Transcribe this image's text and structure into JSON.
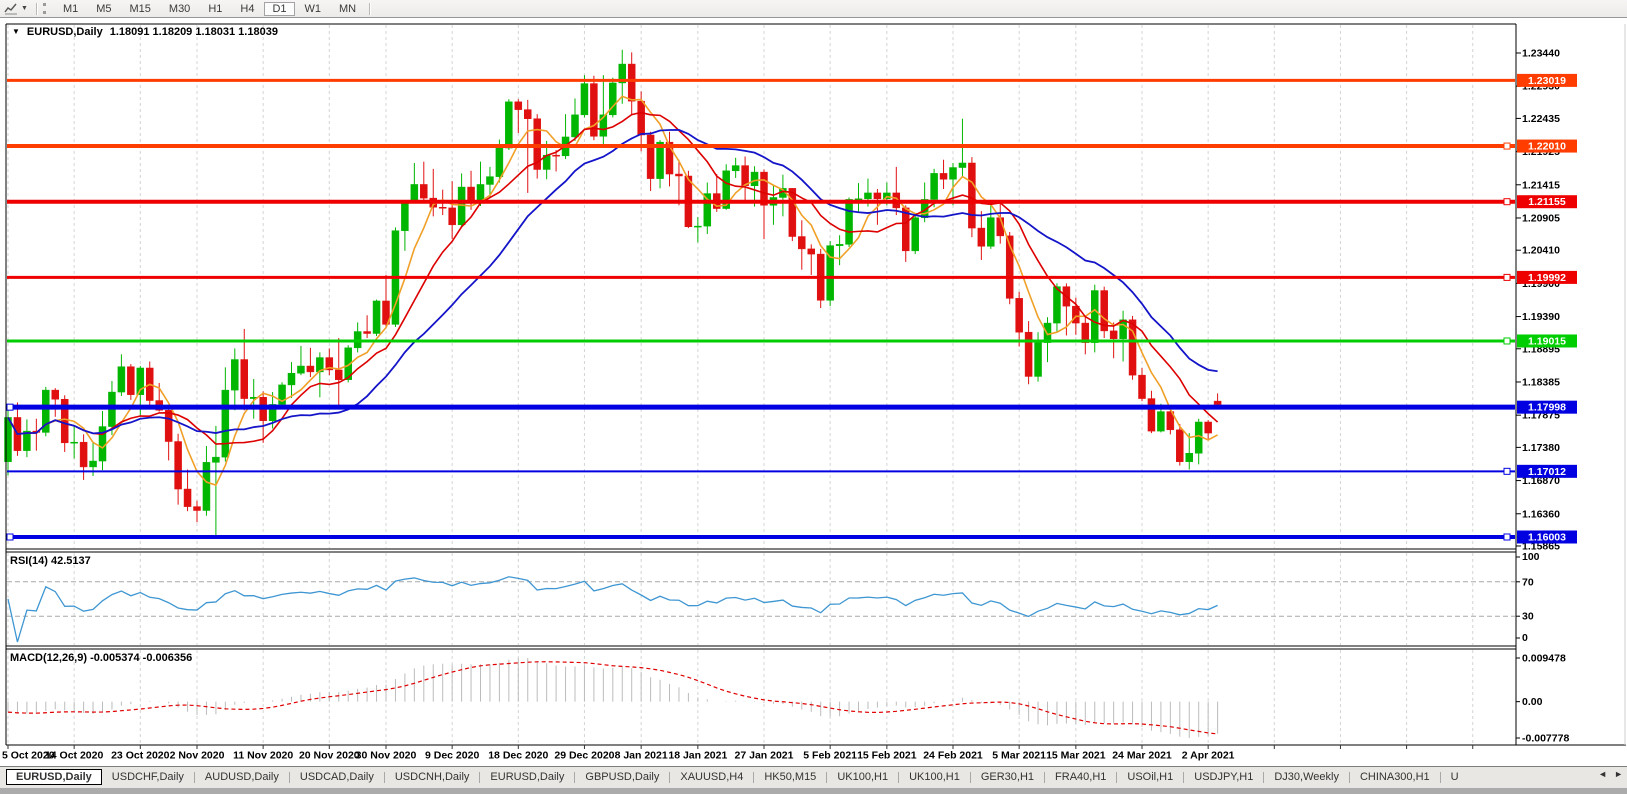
{
  "toolbar": {
    "timeframes": [
      "M1",
      "M5",
      "M15",
      "M30",
      "H1",
      "H4",
      "D1",
      "W1",
      "MN"
    ],
    "active_timeframe": "D1",
    "menu_caret": "▼"
  },
  "chart": {
    "title": "EURUSD,Daily",
    "ohlc_text": "1.18091 1.18209 1.18031 1.18039",
    "marker": "▼"
  },
  "tabs": {
    "active": "EURUSD,Daily",
    "items": [
      "USDCHF,Daily",
      "AUDUSD,Daily",
      "USDCAD,Daily",
      "USDCNH,Daily",
      "EURUSD,Daily",
      "GBPUSD,Daily",
      "XAUUSD,H4",
      "HK50,M15",
      "UK100,H1",
      "UK100,H1",
      "GER30,H1",
      "FRA40,H1",
      "USOil,H1",
      "USDJPY,H1",
      "DJ30,Weekly",
      "CHINA300,H1",
      "U"
    ],
    "scroll_left": "◄",
    "scroll_right": "►"
  },
  "chart_data": {
    "type": "candlestick",
    "symbol": "EURUSD",
    "timeframe": "Daily",
    "last_ohlc": {
      "open": 1.18091,
      "high": 1.18209,
      "low": 1.18031,
      "close": 1.18039
    },
    "colors": {
      "bull": "#00b600",
      "bear": "#e01010",
      "grid": "#d4d4d4"
    },
    "y_ticks": [
      "1.23440",
      "1.22930",
      "1.22435",
      "1.21925",
      "1.21415",
      "1.20905",
      "1.20410",
      "1.19900",
      "1.19390",
      "1.18895",
      "1.18385",
      "1.17875",
      "1.17380",
      "1.16870",
      "1.16360",
      "1.15865"
    ],
    "x_labels": [
      {
        "label": "5 Oct 2020",
        "index": 0
      },
      {
        "label": "14 Oct 2020",
        "index": 7
      },
      {
        "label": "23 Oct 2020",
        "index": 14
      },
      {
        "label": "2 Nov 2020",
        "index": 20
      },
      {
        "label": "11 Nov 2020",
        "index": 27
      },
      {
        "label": "20 Nov 2020",
        "index": 34
      },
      {
        "label": "30 Nov 2020",
        "index": 40
      },
      {
        "label": "9 Dec 2020",
        "index": 47
      },
      {
        "label": "18 Dec 2020",
        "index": 54
      },
      {
        "label": "29 Dec 2020",
        "index": 61
      },
      {
        "label": "8 Jan 2021",
        "index": 67
      },
      {
        "label": "18 Jan 2021",
        "index": 73
      },
      {
        "label": "27 Jan 2021",
        "index": 80
      },
      {
        "label": "5 Feb 2021",
        "index": 87
      },
      {
        "label": "15 Feb 2021",
        "index": 93
      },
      {
        "label": "24 Feb 2021",
        "index": 100
      },
      {
        "label": "5 Mar 2021",
        "index": 107
      },
      {
        "label": "15 Mar 2021",
        "index": 113
      },
      {
        "label": "24 Mar 2021",
        "index": 120
      },
      {
        "label": "2 Apr 2021",
        "index": 127
      }
    ],
    "future_ticks": [
      134,
      141,
      148,
      155
    ],
    "levels": [
      {
        "price": 1.23019,
        "label": "1.23019",
        "color": "#ff3d00",
        "width": 3,
        "left_handle": false,
        "right_handle": false
      },
      {
        "price": 1.2201,
        "label": "1.22010",
        "color": "#ff3d00",
        "width": 4,
        "left_handle": false,
        "right_handle": true
      },
      {
        "price": 1.21155,
        "label": "1.21155",
        "color": "#ee0000",
        "width": 4,
        "left_handle": false,
        "right_handle": true
      },
      {
        "price": 1.19992,
        "label": "1.19992",
        "color": "#ee0000",
        "width": 3,
        "left_handle": false,
        "right_handle": true
      },
      {
        "price": 1.19015,
        "label": "1.19015",
        "color": "#00ce00",
        "width": 3,
        "left_handle": false,
        "right_handle": true
      },
      {
        "price": 1.17998,
        "label": "1.17998",
        "color": "#0000e0",
        "width": 5,
        "left_handle": true,
        "right_handle": false
      },
      {
        "price": 1.17012,
        "label": "1.17012",
        "color": "#0000e0",
        "width": 2,
        "left_handle": false,
        "right_handle": true
      },
      {
        "price": 1.16003,
        "label": "1.16003",
        "color": "#0000e0",
        "width": 4,
        "left_handle": true,
        "right_handle": true
      }
    ],
    "overlays": [
      {
        "name": "ma-fast",
        "type": "sma",
        "period": 5,
        "color": "#f0a028",
        "width": 1.6
      },
      {
        "name": "ma-medium",
        "type": "sma",
        "period": 10,
        "color": "#dd0000",
        "width": 1.6
      },
      {
        "name": "ma-slow",
        "type": "sma",
        "period": 20,
        "color": "#1414c8",
        "width": 1.8
      }
    ],
    "indicators": {
      "rsi": {
        "label": "RSI(14) 42.5137",
        "period": 14,
        "value": 42.5137,
        "axis": [
          "100",
          "70",
          "30",
          "0"
        ],
        "dashed_levels": [
          70,
          30
        ],
        "color": "#3e96d2"
      },
      "macd": {
        "label": "MACD(12,26,9) -0.005374 -0.006356",
        "fast": 12,
        "slow": 26,
        "signal": 9,
        "value": -0.005374,
        "signal_value": -0.006356,
        "axis_max": "0.009478",
        "axis_zero": "0.00",
        "axis_min": "-0.007778",
        "bar_color": "#bcbcbc",
        "signal_color": "#e00000"
      }
    },
    "candles": [
      [
        1.1716,
        1.1797,
        1.1695,
        1.1784
      ],
      [
        1.1784,
        1.1807,
        1.1725,
        1.1733
      ],
      [
        1.1733,
        1.1781,
        1.1723,
        1.1763
      ],
      [
        1.1763,
        1.1782,
        1.1733,
        1.1761
      ],
      [
        1.1761,
        1.1831,
        1.1755,
        1.1826
      ],
      [
        1.1826,
        1.1829,
        1.1785,
        1.1812
      ],
      [
        1.1812,
        1.1818,
        1.1731,
        1.1745
      ],
      [
        1.1745,
        1.1772,
        1.1721,
        1.1746
      ],
      [
        1.1746,
        1.1758,
        1.1688,
        1.1708
      ],
      [
        1.1708,
        1.1747,
        1.1694,
        1.1717
      ],
      [
        1.1717,
        1.1794,
        1.1703,
        1.177
      ],
      [
        1.177,
        1.184,
        1.1757,
        1.1823
      ],
      [
        1.1823,
        1.1881,
        1.1817,
        1.1862
      ],
      [
        1.1862,
        1.1866,
        1.1811,
        1.1819
      ],
      [
        1.1819,
        1.1863,
        1.1786,
        1.186
      ],
      [
        1.186,
        1.187,
        1.1803,
        1.181
      ],
      [
        1.181,
        1.1837,
        1.1793,
        1.1795
      ],
      [
        1.1795,
        1.18,
        1.1718,
        1.1747
      ],
      [
        1.1747,
        1.1759,
        1.165,
        1.1674
      ],
      [
        1.1674,
        1.1704,
        1.164,
        1.1647
      ],
      [
        1.1647,
        1.1656,
        1.1623,
        1.1641
      ],
      [
        1.1641,
        1.174,
        1.1633,
        1.1715
      ],
      [
        1.1715,
        1.1771,
        1.1603,
        1.1723
      ],
      [
        1.1723,
        1.1861,
        1.1716,
        1.1826
      ],
      [
        1.1826,
        1.189,
        1.1795,
        1.1873
      ],
      [
        1.1873,
        1.192,
        1.1795,
        1.1813
      ],
      [
        1.1813,
        1.1843,
        1.1782,
        1.1815
      ],
      [
        1.1815,
        1.1824,
        1.1745,
        1.1779
      ],
      [
        1.1779,
        1.1823,
        1.1767,
        1.1804
      ],
      [
        1.1804,
        1.1838,
        1.1798,
        1.1834
      ],
      [
        1.1834,
        1.1869,
        1.1814,
        1.1852
      ],
      [
        1.1852,
        1.1894,
        1.1849,
        1.1863
      ],
      [
        1.1863,
        1.1891,
        1.1846,
        1.1854
      ],
      [
        1.1854,
        1.1884,
        1.1815,
        1.1876
      ],
      [
        1.1876,
        1.189,
        1.1849,
        1.1857
      ],
      [
        1.1857,
        1.1906,
        1.18,
        1.1842
      ],
      [
        1.1842,
        1.1895,
        1.1838,
        1.1891
      ],
      [
        1.1891,
        1.193,
        1.1884,
        1.1916
      ],
      [
        1.1916,
        1.1941,
        1.1906,
        1.1913
      ],
      [
        1.1913,
        1.1965,
        1.1909,
        1.1963
      ],
      [
        1.1963,
        1.2003,
        1.1923,
        1.1927
      ],
      [
        1.1927,
        1.2076,
        1.1923,
        1.2071
      ],
      [
        1.2071,
        1.2118,
        1.204,
        1.2115
      ],
      [
        1.2115,
        1.2175,
        1.2114,
        1.2142
      ],
      [
        1.2142,
        1.2177,
        1.2115,
        1.2121
      ],
      [
        1.2121,
        1.2166,
        1.2093,
        1.2107
      ],
      [
        1.2107,
        1.2134,
        1.2095,
        1.2106
      ],
      [
        1.2106,
        1.2147,
        1.2058,
        1.208
      ],
      [
        1.208,
        1.2159,
        1.2076,
        1.2138
      ],
      [
        1.2138,
        1.2163,
        1.2103,
        1.2113
      ],
      [
        1.2113,
        1.2177,
        1.2109,
        1.2142
      ],
      [
        1.2142,
        1.2169,
        1.2123,
        1.2154
      ],
      [
        1.2154,
        1.2211,
        1.2145,
        1.2198
      ],
      [
        1.2198,
        1.2273,
        1.2195,
        1.2269
      ],
      [
        1.2269,
        1.2273,
        1.2221,
        1.2257
      ],
      [
        1.2257,
        1.2272,
        1.2129,
        1.2243
      ],
      [
        1.2243,
        1.225,
        1.2151,
        1.2165
      ],
      [
        1.2165,
        1.2209,
        1.215,
        1.2187
      ],
      [
        1.2187,
        1.2195,
        1.2162,
        1.2186
      ],
      [
        1.2186,
        1.225,
        1.2181,
        1.2215
      ],
      [
        1.2215,
        1.2274,
        1.2209,
        1.2249
      ],
      [
        1.2249,
        1.231,
        1.2245,
        1.2297
      ],
      [
        1.2297,
        1.2309,
        1.221,
        1.2216
      ],
      [
        1.2216,
        1.231,
        1.22,
        1.2249
      ],
      [
        1.2249,
        1.2306,
        1.2245,
        1.2298
      ],
      [
        1.2298,
        1.2349,
        1.2266,
        1.2327
      ],
      [
        1.2327,
        1.2345,
        1.2248,
        1.227
      ],
      [
        1.227,
        1.2285,
        1.2193,
        1.2218
      ],
      [
        1.2218,
        1.2223,
        1.2132,
        1.2151
      ],
      [
        1.2151,
        1.221,
        1.2136,
        1.2207
      ],
      [
        1.2207,
        1.2223,
        1.2139,
        1.2158
      ],
      [
        1.2158,
        1.218,
        1.211,
        1.2155
      ],
      [
        1.2155,
        1.2163,
        1.2075,
        1.2077
      ],
      [
        1.2077,
        1.2092,
        1.2053,
        1.2078
      ],
      [
        1.2078,
        1.2145,
        1.2066,
        1.2128
      ],
      [
        1.2128,
        1.2158,
        1.21,
        1.2105
      ],
      [
        1.2105,
        1.2173,
        1.2103,
        1.2163
      ],
      [
        1.2163,
        1.2183,
        1.2152,
        1.2171
      ],
      [
        1.2171,
        1.2185,
        1.2116,
        1.214
      ],
      [
        1.214,
        1.217,
        1.2108,
        1.2161
      ],
      [
        1.2161,
        1.2165,
        1.2058,
        1.211
      ],
      [
        1.211,
        1.2142,
        1.208,
        1.2122
      ],
      [
        1.2122,
        1.2157,
        1.2093,
        1.2136
      ],
      [
        1.2136,
        1.2136,
        1.2055,
        1.2062
      ],
      [
        1.2062,
        1.2087,
        1.2011,
        1.2043
      ],
      [
        1.2043,
        1.205,
        1.2003,
        1.2035
      ],
      [
        1.2035,
        1.2043,
        1.1952,
        1.1964
      ],
      [
        1.1964,
        1.2055,
        1.1955,
        1.2048
      ],
      [
        1.2048,
        1.2064,
        1.2018,
        1.205
      ],
      [
        1.205,
        1.2122,
        1.2046,
        1.2119
      ],
      [
        1.2119,
        1.2144,
        1.21,
        1.212
      ],
      [
        1.212,
        1.2151,
        1.2108,
        1.2129
      ],
      [
        1.2129,
        1.2135,
        1.208,
        1.212
      ],
      [
        1.212,
        1.2145,
        1.211,
        1.2129
      ],
      [
        1.2129,
        1.2169,
        1.2095,
        1.2106
      ],
      [
        1.2106,
        1.211,
        1.2023,
        1.204
      ],
      [
        1.204,
        1.2097,
        1.2035,
        1.2091
      ],
      [
        1.2091,
        1.2145,
        1.2084,
        1.2119
      ],
      [
        1.2119,
        1.2166,
        1.2107,
        1.2159
      ],
      [
        1.2159,
        1.218,
        1.2135,
        1.215
      ],
      [
        1.215,
        1.2175,
        1.211,
        1.2168
      ],
      [
        1.2168,
        1.2243,
        1.2155,
        1.2175
      ],
      [
        1.2175,
        1.2184,
        1.2061,
        1.2075
      ],
      [
        1.2075,
        1.2101,
        1.2026,
        1.2047
      ],
      [
        1.2047,
        1.2113,
        1.2043,
        1.2091
      ],
      [
        1.2091,
        1.2113,
        1.2051,
        1.2063
      ],
      [
        1.2063,
        1.2069,
        1.1958,
        1.1967
      ],
      [
        1.1967,
        1.1977,
        1.1893,
        1.1915
      ],
      [
        1.1915,
        1.1932,
        1.1835,
        1.1847
      ],
      [
        1.1847,
        1.1915,
        1.1839,
        1.1899
      ],
      [
        1.1899,
        1.1938,
        1.1869,
        1.1929
      ],
      [
        1.1929,
        1.199,
        1.1915,
        1.1985
      ],
      [
        1.1985,
        1.199,
        1.191,
        1.1955
      ],
      [
        1.1955,
        1.1968,
        1.1911,
        1.1929
      ],
      [
        1.1929,
        1.194,
        1.1881,
        1.1899
      ],
      [
        1.1899,
        1.1988,
        1.1884,
        1.1979
      ],
      [
        1.1979,
        1.1985,
        1.1906,
        1.1917
      ],
      [
        1.1917,
        1.193,
        1.1875,
        1.1905
      ],
      [
        1.1905,
        1.1948,
        1.187,
        1.1934
      ],
      [
        1.1934,
        1.194,
        1.1842,
        1.1849
      ],
      [
        1.1849,
        1.186,
        1.1809,
        1.1813
      ],
      [
        1.1813,
        1.1825,
        1.176,
        1.1763
      ],
      [
        1.1763,
        1.1805,
        1.1761,
        1.1793
      ],
      [
        1.1793,
        1.1796,
        1.1758,
        1.1765
      ],
      [
        1.1765,
        1.1774,
        1.171,
        1.1716
      ],
      [
        1.1716,
        1.176,
        1.1704,
        1.1729
      ],
      [
        1.1729,
        1.1782,
        1.1712,
        1.1777
      ],
      [
        1.1777,
        1.178,
        1.1749,
        1.176
      ],
      [
        1.18091,
        1.18209,
        1.18031,
        1.18039
      ]
    ]
  }
}
